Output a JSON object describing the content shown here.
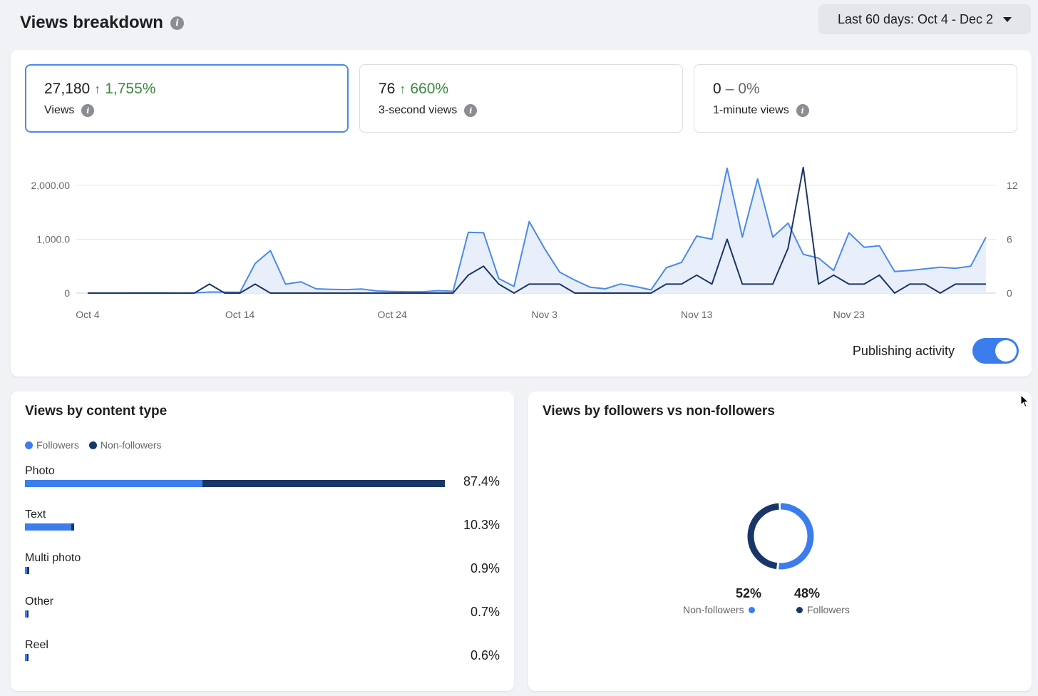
{
  "header": {
    "title": "Views breakdown",
    "date_range": "Last 60 days: Oct 4 - Dec 2"
  },
  "metrics": [
    {
      "value": "27,180",
      "arrow": "↑",
      "change": "1,755%",
      "label": "Views",
      "active": true,
      "trend": "up"
    },
    {
      "value": "76",
      "arrow": "↑",
      "change": "660%",
      "label": "3-second views",
      "active": false,
      "trend": "up"
    },
    {
      "value": "0",
      "arrow": "–",
      "change": "0%",
      "label": "1-minute views",
      "active": false,
      "trend": "flat"
    }
  ],
  "chart_data": {
    "type": "line",
    "x_tick_labels": [
      "Oct 4",
      "Oct 14",
      "Oct 24",
      "Nov 3",
      "Nov 13",
      "Nov 23"
    ],
    "y_left_ticks": [
      "0",
      "1,000.0",
      "2,000.00"
    ],
    "y_right_ticks": [
      "0",
      "6",
      "12"
    ],
    "y_left_range": [
      0,
      2000
    ],
    "y_right_range": [
      0,
      12
    ],
    "grid": true,
    "legend": "none",
    "series": [
      {
        "axis": "left",
        "color": "#4a8ae8",
        "fill": "#e8effb",
        "values": [
          0,
          0,
          0,
          2,
          3,
          2,
          0,
          3,
          20,
          18,
          15,
          550,
          790,
          165,
          210,
          80,
          70,
          65,
          75,
          40,
          30,
          25,
          25,
          45,
          35,
          1130,
          1120,
          270,
          125,
          1330,
          830,
          390,
          240,
          110,
          80,
          170,
          120,
          60,
          470,
          570,
          1060,
          1000,
          2320,
          1040,
          2120,
          1040,
          1300,
          720,
          650,
          420,
          1120,
          850,
          880,
          400,
          420,
          450,
          480,
          460,
          500,
          1040
        ]
      },
      {
        "axis": "right",
        "color": "#1a3668",
        "values": [
          0,
          0,
          0,
          0,
          0,
          0,
          0,
          0,
          1,
          0,
          0,
          1,
          0,
          0,
          0,
          0,
          0,
          0,
          0,
          0,
          0,
          0,
          0,
          0,
          0,
          2,
          3,
          1,
          0,
          1,
          1,
          1,
          0,
          0,
          0,
          0,
          0,
          0,
          1,
          1,
          2,
          1,
          6,
          1,
          1,
          1,
          5,
          14,
          1,
          2,
          1,
          1,
          2,
          0,
          1,
          1,
          0,
          1,
          1,
          1
        ]
      }
    ]
  },
  "publishing": {
    "label": "Publishing activity",
    "enabled": true
  },
  "content_type": {
    "title": "Views by content type",
    "legend": [
      {
        "label": "Followers",
        "color": "#3b7ded"
      },
      {
        "label": "Non-followers",
        "color": "#1a3668"
      }
    ],
    "rows": [
      {
        "label": "Photo",
        "pct": "87.4%",
        "followers": 37.0,
        "non_followers": 50.4
      },
      {
        "label": "Text",
        "pct": "10.3%",
        "followers": 9.6,
        "non_followers": 0.7
      },
      {
        "label": "Multi photo",
        "pct": "0.9%",
        "followers": 0.5,
        "non_followers": 0.4
      },
      {
        "label": "Other",
        "pct": "0.7%",
        "followers": 0.4,
        "non_followers": 0.3
      },
      {
        "label": "Reel",
        "pct": "0.6%",
        "followers": 0.4,
        "non_followers": 0.2
      }
    ]
  },
  "followers_vs": {
    "title": "Views by followers vs non-followers",
    "slices": [
      {
        "label": "Non-followers",
        "pct": "52%",
        "value": 52,
        "color": "#3b7ded"
      },
      {
        "label": "Followers",
        "pct": "48%",
        "value": 48,
        "color": "#1a3668"
      }
    ]
  }
}
